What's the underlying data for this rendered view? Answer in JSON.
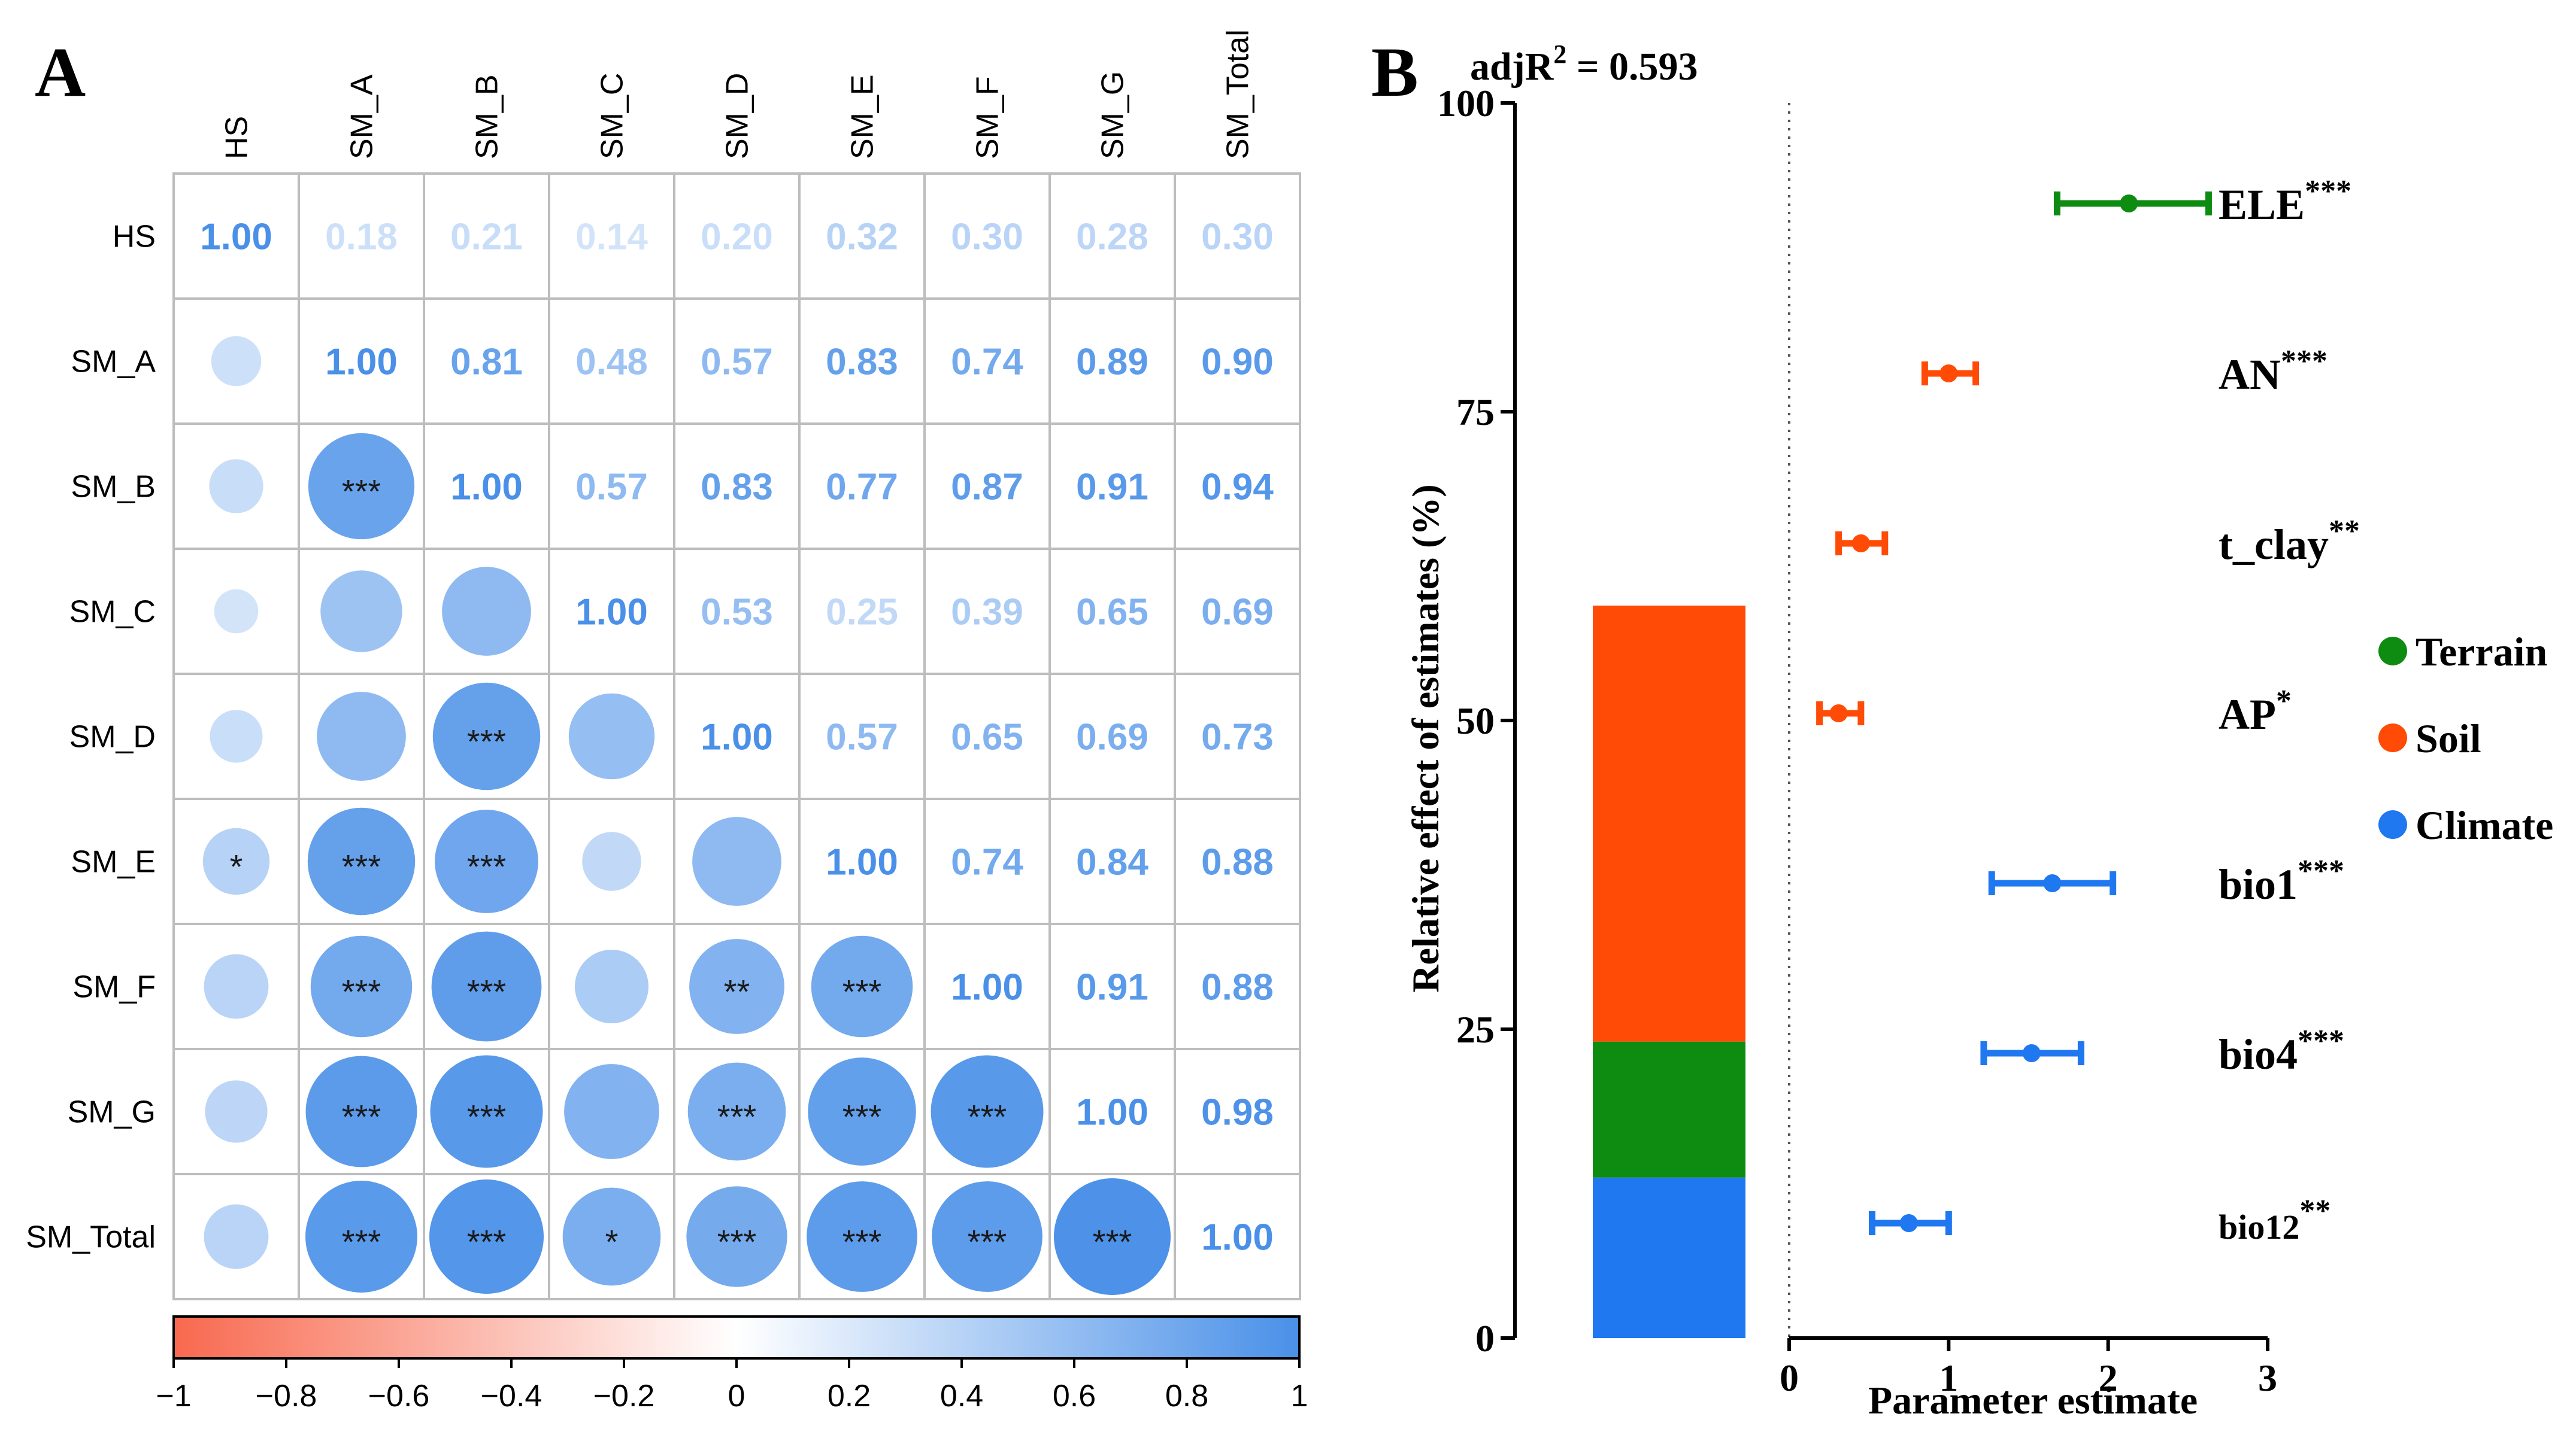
{
  "chart_data": [
    {
      "panel_label": "A",
      "type": "heatmap",
      "subtype": "correlation-matrix",
      "variables": [
        "HS",
        "SM_A",
        "SM_B",
        "SM_C",
        "SM_D",
        "SM_E",
        "SM_F",
        "SM_G",
        "SM_Total"
      ],
      "matrix": [
        [
          1.0,
          0.18,
          0.21,
          0.14,
          0.2,
          0.32,
          0.3,
          0.28,
          0.3
        ],
        [
          0.18,
          1.0,
          0.81,
          0.48,
          0.57,
          0.83,
          0.74,
          0.89,
          0.9
        ],
        [
          0.21,
          0.81,
          1.0,
          0.57,
          0.83,
          0.77,
          0.87,
          0.91,
          0.94
        ],
        [
          0.14,
          0.48,
          0.57,
          1.0,
          0.53,
          0.25,
          0.39,
          0.65,
          0.69
        ],
        [
          0.2,
          0.57,
          0.83,
          0.53,
          1.0,
          0.57,
          0.65,
          0.69,
          0.73
        ],
        [
          0.32,
          0.83,
          0.77,
          0.25,
          0.57,
          1.0,
          0.74,
          0.84,
          0.88
        ],
        [
          0.3,
          0.74,
          0.87,
          0.39,
          0.65,
          0.74,
          1.0,
          0.91,
          0.88
        ],
        [
          0.28,
          0.89,
          0.91,
          0.65,
          0.69,
          0.84,
          0.91,
          1.0,
          0.98
        ],
        [
          0.3,
          0.9,
          0.94,
          0.69,
          0.73,
          0.88,
          0.88,
          0.98,
          1.0
        ]
      ],
      "upper_triangle": "number",
      "lower_triangle": "circle",
      "significance": [
        [
          "",
          "",
          "",
          "",
          "",
          "",
          "",
          "",
          ""
        ],
        [
          "",
          "",
          "",
          "",
          "",
          "",
          "",
          "",
          ""
        ],
        [
          "",
          "***",
          "",
          "",
          "",
          "",
          "",
          "",
          ""
        ],
        [
          "",
          "",
          "",
          "",
          "",
          "",
          "",
          "",
          ""
        ],
        [
          "",
          "",
          "***",
          "",
          "",
          "",
          "",
          "",
          ""
        ],
        [
          "*",
          "***",
          "***",
          "",
          "",
          "",
          "",
          "",
          ""
        ],
        [
          "",
          "***",
          "***",
          "",
          "**",
          "***",
          "",
          "",
          ""
        ],
        [
          "",
          "***",
          "***",
          "",
          "***",
          "***",
          "***",
          "",
          ""
        ],
        [
          "",
          "***",
          "***",
          "*",
          "***",
          "***",
          "***",
          "***",
          ""
        ]
      ],
      "colorbar": {
        "range": [
          -1,
          1
        ],
        "ticks": [
          "−1",
          "−0.8",
          "−0.6",
          "−0.4",
          "−0.2",
          "0",
          "0.2",
          "0.4",
          "0.6",
          "0.8",
          "1"
        ],
        "colors": {
          "negative": "#F8694F",
          "zero": "#FFFFFF",
          "positive": "#4A90E8"
        }
      }
    },
    {
      "panel_label": "B",
      "type": "bar",
      "subtype": "stacked-bar-with-estimate-errorbars",
      "annotation": {
        "prefix": "adjR",
        "sup": "2",
        "suffix": " = 0.593"
      },
      "bar": {
        "ylabel": "Relative effect of estimates (%)",
        "ylim": [
          0,
          100
        ],
        "yticks": [
          "0",
          "25",
          "50",
          "75",
          "100"
        ],
        "segments": [
          {
            "group": "Climate",
            "value": 13,
            "color": "#1F78F0"
          },
          {
            "group": "Terrain",
            "value": 11,
            "color": "#0E8C12"
          },
          {
            "group": "Soil",
            "value": 35.3,
            "color": "#FF4B05"
          }
        ]
      },
      "estimates": {
        "xlabel": "Parameter estimate",
        "xlim": [
          0,
          3
        ],
        "xticks": [
          "0",
          "1",
          "2",
          "3"
        ],
        "reference_line": 0,
        "items": [
          {
            "name": "ELE",
            "stars": "***",
            "group": "Terrain",
            "estimate": 2.13,
            "lower": 1.68,
            "upper": 2.63
          },
          {
            "name": "AN",
            "stars": "***",
            "group": "Soil",
            "estimate": 1.0,
            "lower": 0.85,
            "upper": 1.17
          },
          {
            "name": "t_clay",
            "stars": "**",
            "group": "Soil",
            "estimate": 0.45,
            "lower": 0.31,
            "upper": 0.6
          },
          {
            "name": "AP",
            "stars": "*",
            "group": "Soil",
            "estimate": 0.31,
            "lower": 0.19,
            "upper": 0.45
          },
          {
            "name": "bio1",
            "stars": "***",
            "group": "Climate",
            "estimate": 1.65,
            "lower": 1.27,
            "upper": 2.03
          },
          {
            "name": "bio4",
            "stars": "***",
            "group": "Climate",
            "estimate": 1.52,
            "lower": 1.22,
            "upper": 1.83
          },
          {
            "name": "bio12",
            "stars": "**",
            "group": "Climate",
            "estimate": 0.75,
            "lower": 0.52,
            "upper": 1.0
          }
        ]
      },
      "legend": [
        {
          "label": "Terrain",
          "color": "#0E8C12"
        },
        {
          "label": "Soil",
          "color": "#FF4B05"
        },
        {
          "label": "Climate",
          "color": "#1F78F0"
        }
      ],
      "legend_placement": "right"
    }
  ]
}
